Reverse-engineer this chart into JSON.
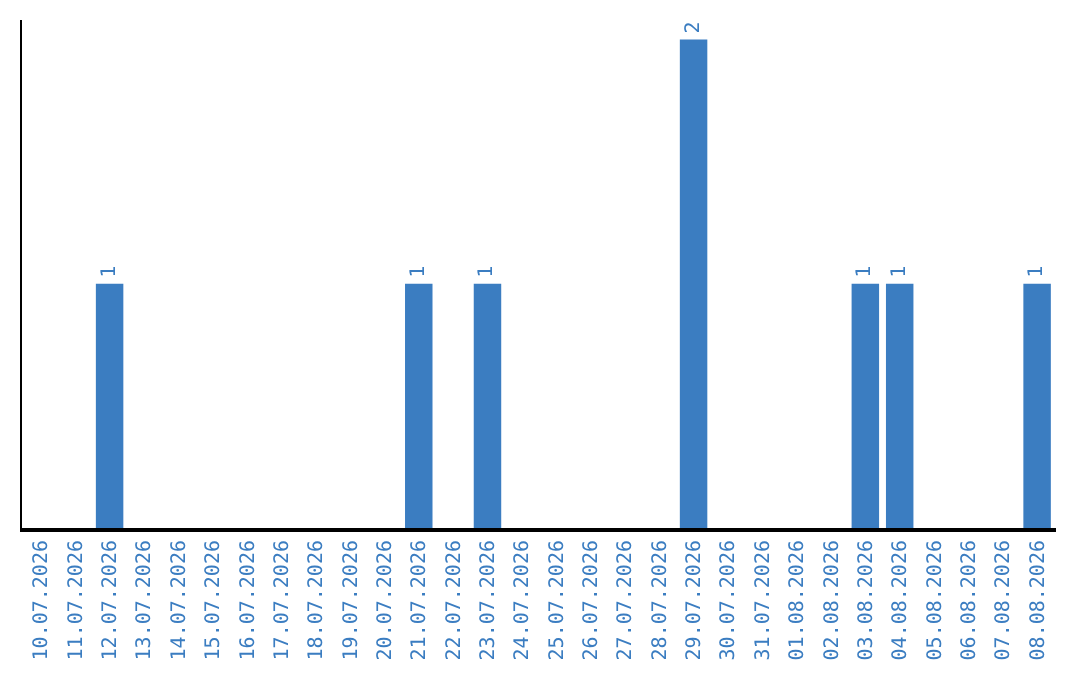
{
  "chart_data": {
    "type": "bar",
    "categories": [
      "10.07.2026",
      "11.07.2026",
      "12.07.2026",
      "13.07.2026",
      "14.07.2026",
      "15.07.2026",
      "16.07.2026",
      "17.07.2026",
      "18.07.2026",
      "19.07.2026",
      "20.07.2026",
      "21.07.2026",
      "22.07.2026",
      "23.07.2026",
      "24.07.2026",
      "25.07.2026",
      "26.07.2026",
      "27.07.2026",
      "28.07.2026",
      "29.07.2026",
      "30.07.2026",
      "31.07.2026",
      "01.08.2026",
      "02.08.2026",
      "03.08.2026",
      "04.08.2026",
      "05.08.2026",
      "06.08.2026",
      "07.08.2026",
      "08.08.2026"
    ],
    "values": [
      0,
      0,
      1,
      0,
      0,
      0,
      0,
      0,
      0,
      0,
      0,
      1,
      0,
      1,
      0,
      0,
      0,
      0,
      0,
      2,
      0,
      0,
      0,
      0,
      1,
      1,
      0,
      0,
      0,
      1
    ],
    "value_labels": [
      null,
      null,
      "1",
      null,
      null,
      null,
      null,
      null,
      null,
      null,
      null,
      "1",
      null,
      "1",
      null,
      null,
      null,
      null,
      null,
      "2",
      null,
      null,
      null,
      null,
      "1",
      "1",
      null,
      null,
      null,
      "1"
    ],
    "color": "#3b7dc1",
    "ylim": [
      0,
      2.08
    ],
    "tick_labels": "x"
  }
}
